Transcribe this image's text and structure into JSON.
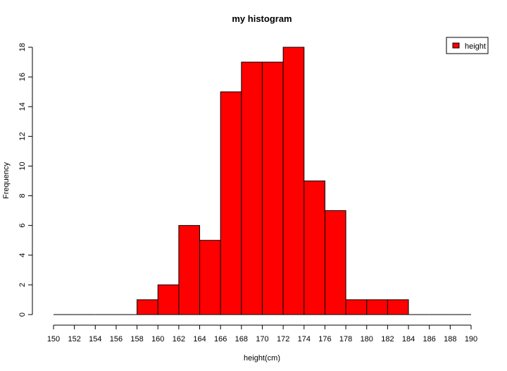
{
  "chart_data": {
    "type": "bar",
    "title": "my histogram",
    "xlabel": "height(cm)",
    "ylabel": "Frequency",
    "bin_edges": [
      150,
      152,
      154,
      156,
      158,
      160,
      162,
      164,
      166,
      168,
      170,
      172,
      174,
      176,
      178,
      180,
      182,
      184,
      186,
      188,
      190
    ],
    "values": [
      0,
      0,
      0,
      0,
      1,
      2,
      6,
      5,
      15,
      17,
      17,
      18,
      9,
      7,
      1,
      1,
      1,
      0,
      0,
      0
    ],
    "xlim": [
      150,
      190
    ],
    "ylim": [
      0,
      18
    ],
    "x_ticks": [
      "150",
      "152",
      "154",
      "156",
      "158",
      "160",
      "162",
      "164",
      "166",
      "168",
      "170",
      "172",
      "174",
      "176",
      "178",
      "180",
      "182",
      "184",
      "186",
      "188",
      "190"
    ],
    "y_ticks": [
      "0",
      "2",
      "4",
      "6",
      "8",
      "10",
      "12",
      "14",
      "16",
      "18"
    ],
    "legend": {
      "position": "top-right",
      "entries": [
        "height"
      ]
    },
    "bar_color": "#ff0000",
    "grid": false
  }
}
